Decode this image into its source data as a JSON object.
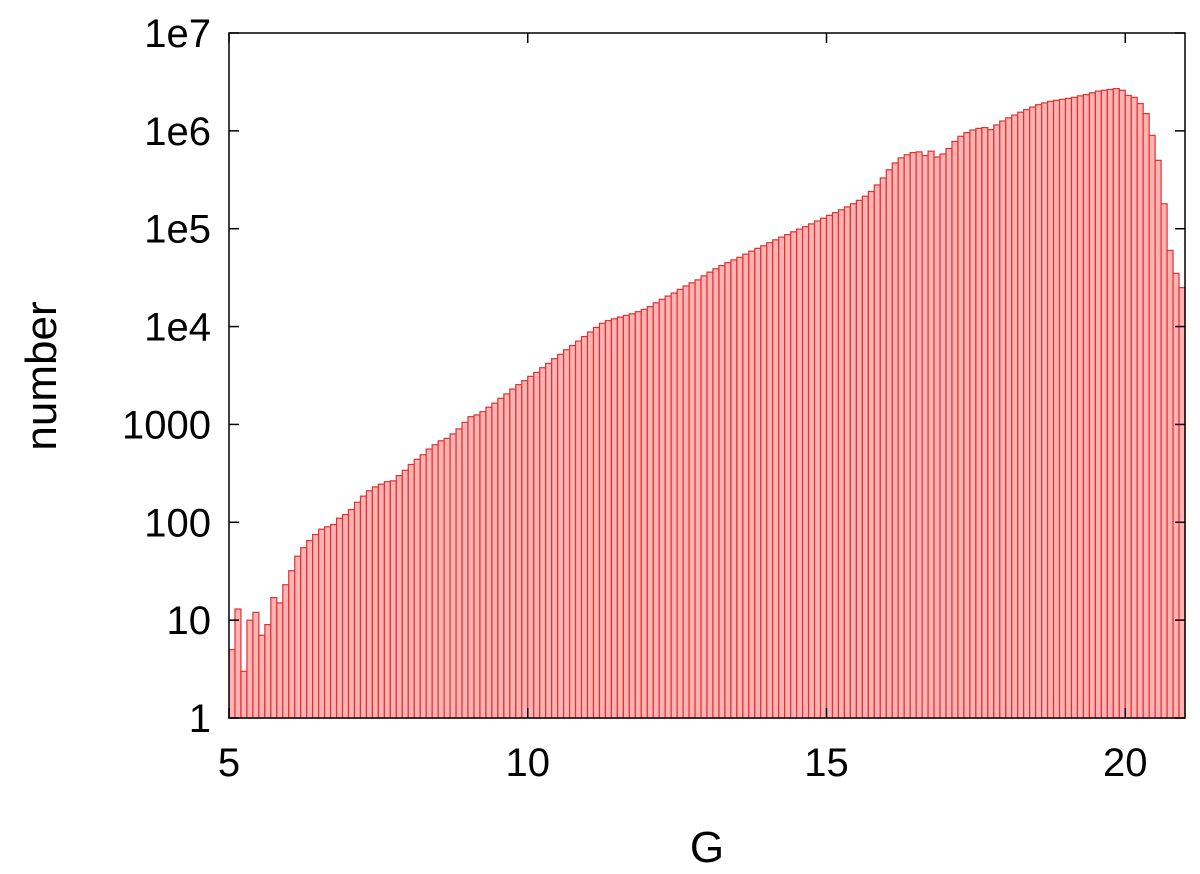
{
  "chart_data": {
    "type": "histogram",
    "xlabel": "G",
    "ylabel": "number",
    "bins": [
      5,
      5.1,
      5.2,
      5.3,
      5.4,
      5.5,
      5.6,
      5.7,
      5.8,
      5.9,
      6,
      6.1,
      6.2,
      6.3,
      6.4,
      6.5,
      6.6,
      6.7,
      6.8,
      6.9,
      7,
      7.1,
      7.2,
      7.3,
      7.4,
      7.5,
      7.6,
      7.7,
      7.8,
      7.9,
      8,
      8.1,
      8.2,
      8.3,
      8.4,
      8.5,
      8.6,
      8.7,
      8.8,
      8.9,
      9,
      9.1,
      9.2,
      9.3,
      9.4,
      9.5,
      9.6,
      9.7,
      9.8,
      9.9,
      10,
      10.1,
      10.2,
      10.3,
      10.4,
      10.5,
      10.6,
      10.7,
      10.8,
      10.9,
      11,
      11.1,
      11.2,
      11.3,
      11.4,
      11.5,
      11.6,
      11.7,
      11.8,
      11.9,
      12,
      12.1,
      12.2,
      12.3,
      12.4,
      12.5,
      12.6,
      12.7,
      12.8,
      12.9,
      13,
      13.1,
      13.2,
      13.3,
      13.4,
      13.5,
      13.6,
      13.7,
      13.8,
      13.9,
      14,
      14.1,
      14.2,
      14.3,
      14.4,
      14.5,
      14.6,
      14.7,
      14.8,
      14.9,
      15,
      15.1,
      15.2,
      15.3,
      15.4,
      15.5,
      15.6,
      15.7,
      15.8,
      15.9,
      16,
      16.1,
      16.2,
      16.3,
      16.4,
      16.5,
      16.6,
      16.7,
      16.8,
      16.9,
      17,
      17.1,
      17.2,
      17.3,
      17.4,
      17.5,
      17.6,
      17.7,
      17.8,
      17.9,
      18,
      18.1,
      18.2,
      18.3,
      18.4,
      18.5,
      18.6,
      18.7,
      18.8,
      18.9,
      19,
      19.1,
      19.2,
      19.3,
      19.4,
      19.5,
      19.6,
      19.7,
      19.8,
      19.9,
      20,
      20.1,
      20.2,
      20.3,
      20.4,
      20.5,
      20.6,
      20.7,
      20.8,
      20.9,
      21
    ],
    "values": [
      5,
      13,
      3,
      10,
      12,
      7,
      9,
      17,
      15,
      23,
      32,
      45,
      55,
      65,
      75,
      85,
      90,
      95,
      110,
      120,
      135,
      160,
      185,
      210,
      230,
      245,
      260,
      265,
      300,
      340,
      390,
      440,
      490,
      560,
      620,
      680,
      720,
      800,
      900,
      1050,
      1200,
      1250,
      1350,
      1500,
      1650,
      1850,
      2050,
      2300,
      2550,
      2800,
      3100,
      3400,
      3800,
      4200,
      4700,
      5200,
      5800,
      6400,
      7100,
      7900,
      8800,
      9800,
      10800,
      11500,
      12000,
      12500,
      13000,
      13500,
      14200,
      15000,
      16000,
      17500,
      19000,
      20500,
      22000,
      24000,
      26000,
      28000,
      30000,
      33000,
      36000,
      39000,
      42000,
      45000,
      48000,
      51000,
      55000,
      59000,
      63000,
      67000,
      72000,
      77000,
      82000,
      87000,
      93000,
      99000,
      105000,
      112000,
      120000,
      128000,
      137000,
      146000,
      156000,
      167000,
      180000,
      195000,
      215000,
      240000,
      280000,
      330000,
      400000,
      470000,
      530000,
      570000,
      600000,
      610000,
      560000,
      620000,
      540000,
      580000,
      660000,
      780000,
      880000,
      960000,
      1020000,
      1060000,
      1080000,
      1030000,
      1150000,
      1260000,
      1360000,
      1450000,
      1550000,
      1650000,
      1750000,
      1850000,
      1930000,
      2000000,
      2050000,
      2100000,
      2150000,
      2200000,
      2280000,
      2350000,
      2450000,
      2550000,
      2600000,
      2650000,
      2700000,
      2600000,
      2300000,
      2200000,
      1900000,
      1500000,
      900000,
      500000,
      180000,
      60000,
      35000,
      25000
    ],
    "color": "#ffb3b3",
    "edge_color": "#e03030",
    "xlim": [
      5,
      21
    ],
    "xticks": [
      5,
      10,
      15,
      20
    ],
    "ylim": [
      1,
      10000000
    ],
    "yscale": "log",
    "yticks": [
      1,
      10,
      100,
      1000,
      {
        "value": 10000,
        "label": "1e4"
      },
      {
        "value": 100000,
        "label": "1e5"
      },
      {
        "value": 1000000,
        "label": "1e6"
      },
      {
        "value": 10000000,
        "label": "1e7"
      }
    ]
  }
}
